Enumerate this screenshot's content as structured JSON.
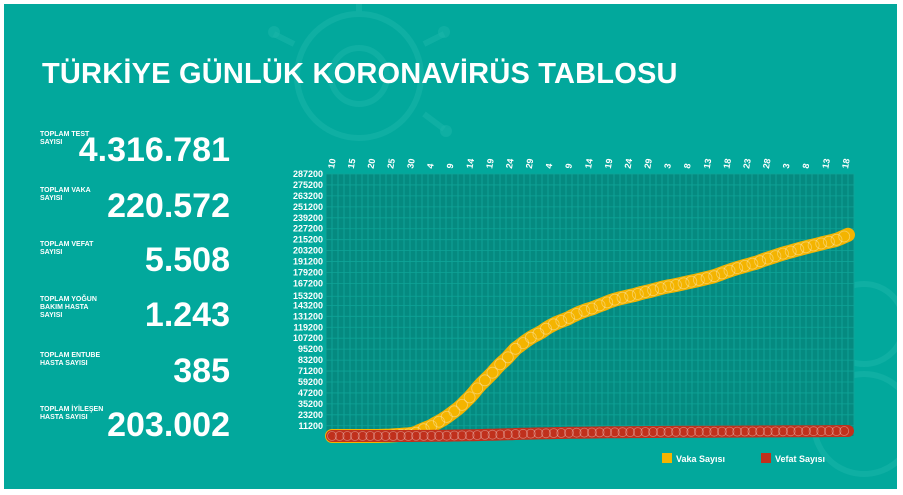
{
  "title": "TÜRKİYE GÜNLÜK KORONAVİRÜS TABLOSU",
  "stats": [
    {
      "label": "TOPLAM TEST SAYISI",
      "value": "4.316.781"
    },
    {
      "label": "TOPLAM VAKA SAYISI",
      "value": "220.572"
    },
    {
      "label": "TOPLAM VEFAT SAYISI",
      "value": "5.508"
    },
    {
      "label": "TOPLAM YOĞUN BAKIM HASTA SAYISI",
      "value": "1.243"
    },
    {
      "label": "TOPLAM ENTUBE HASTA SAYISI",
      "value": "385"
    },
    {
      "label": "TOPLAM İYİLEŞEN HASTA SAYISI",
      "value": "203.002"
    }
  ],
  "colors": {
    "background": "#02a89c",
    "plot_background": "#058a80",
    "vaka": "#f4b400",
    "vefat": "#c0301c"
  },
  "chart_data": {
    "type": "line",
    "title": "",
    "xlabel": "",
    "ylabel": "",
    "x_tick_labels": [
      "10",
      "15",
      "20",
      "25",
      "30",
      "4",
      "9",
      "14",
      "19",
      "24",
      "29",
      "4",
      "9",
      "14",
      "19",
      "24",
      "29",
      "3",
      "8",
      "13",
      "18",
      "23",
      "28",
      "3",
      "8",
      "13",
      "18"
    ],
    "y_tick_labels": [
      "11200",
      "23200",
      "35200",
      "47200",
      "59200",
      "71200",
      "83200",
      "95200",
      "107200",
      "119200",
      "131200",
      "143200",
      "153200",
      "167200",
      "179200",
      "191200",
      "203200",
      "215200",
      "227200",
      "239200",
      "251200",
      "263200",
      "275200",
      "287200"
    ],
    "ylim": [
      0,
      287200
    ],
    "grid": true,
    "legend_position": "bottom-right",
    "series": [
      {
        "name": "Vaka Sayısı",
        "color": "#f4b400",
        "values": [
          1,
          1,
          1,
          1,
          1,
          1,
          1,
          1,
          1,
          1,
          5,
          18,
          47,
          98,
          191,
          359,
          670,
          947,
          1236,
          1529,
          1872,
          2433,
          3629,
          5698,
          7402,
          9217,
          10827,
          13531,
          15679,
          18135,
          20921,
          23934,
          27069,
          30217,
          34109,
          38226,
          42282,
          47029,
          52167,
          56956,
          61049,
          65111,
          69392,
          74193,
          78546,
          82329,
          86306,
          90980,
          95591,
          98674,
          101790,
          104912,
          107773,
          110130,
          112261,
          114653,
          117589,
          120204,
          122392,
          124375,
          126045,
          127659,
          129491,
          131744,
          133721,
          135569,
          137115,
          138657,
          139771,
          141475,
          143114,
          144749,
          146457,
          148067,
          149435,
          150593,
          151615,
          152587,
          153548,
          154500,
          155686,
          156827,
          157814,
          158762,
          159797,
          160979,
          162120,
          163103,
          163942,
          164769,
          165555,
          166422,
          167410,
          168340,
          169218,
          170132,
          171121,
          172114,
          173036,
          174023,
          175218,
          176677,
          178239,
          179831,
          181298,
          182727,
          184031,
          185245,
          186493,
          187685,
          188897,
          189973,
          191657,
          193115,
          194511,
          195883,
          197239,
          198613,
          199906,
          201098,
          202284,
          203456,
          204610,
          205758,
          206844,
          207897,
          208938,
          209962,
          210965,
          211981,
          212993,
          214001,
          215103,
          216873,
          218717,
          220572
        ]
      },
      {
        "name": "Vefat Sayısı",
        "color": "#c0301c",
        "values": [
          0,
          0,
          0,
          0,
          0,
          0,
          0,
          0,
          0,
          0,
          0,
          0,
          0,
          0,
          0,
          1,
          2,
          4,
          9,
          21,
          37,
          44,
          59,
          75,
          92,
          108,
          131,
          168,
          214,
          277,
          356,
          425,
          501,
          574,
          649,
          725,
          812,
          908,
          1006,
          1101,
          1198,
          1296,
          1403,
          1518,
          1643,
          1769,
          1890,
          2017,
          2140,
          2259,
          2376,
          2491,
          2600,
          2706,
          2805,
          2900,
          2992,
          3081,
          3174,
          3258,
          3336,
          3397,
          3461,
          3520,
          3584,
          3641,
          3689,
          3739,
          3786,
          3841,
          3894,
          3952,
          4007,
          4055,
          4096,
          4140,
          4171,
          4199,
          4222,
          4249,
          4276,
          4308,
          4340,
          4369,
          4397,
          4431,
          4461,
          4489,
          4515,
          4540,
          4563,
          4585,
          4609,
          4630,
          4648,
          4669,
          4692,
          4711,
          4729,
          4746,
          4763,
          4778,
          4792,
          4807,
          4825,
          4842,
          4861,
          4882,
          4905,
          4927,
          4950,
          4974,
          4995,
          5025,
          5046,
          5063,
          5082,
          5097,
          5115,
          5131,
          5150,
          5167,
          5185,
          5197,
          5218,
          5241,
          5260,
          5282,
          5305,
          5329,
          5361,
          5382,
          5409,
          5441,
          5475,
          5508
        ]
      }
    ]
  }
}
